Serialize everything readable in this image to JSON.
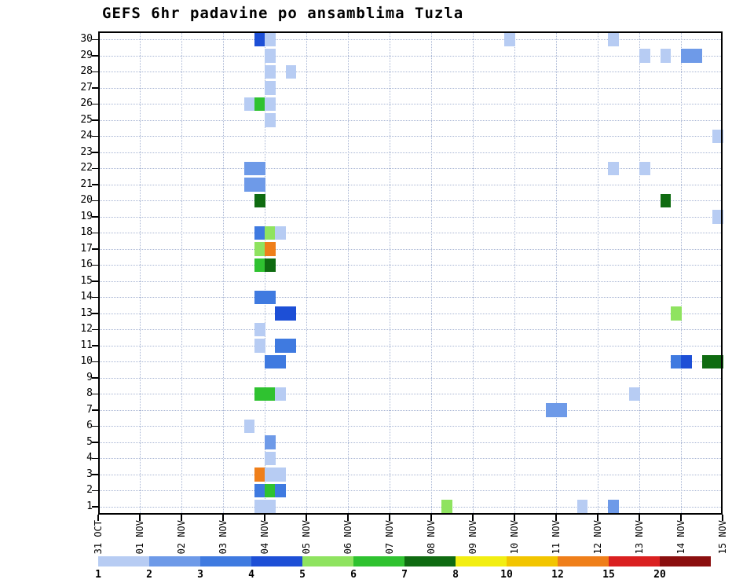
{
  "title": "GEFS 6hr padavine po ansamblima Tuzla",
  "chart_data": {
    "type": "heatmap",
    "title": "GEFS 6hr padavine po ansamblima Tuzla",
    "xlabel": "",
    "ylabel": "",
    "grid": true,
    "legend_position": "bottom",
    "members": [
      1,
      2,
      3,
      4,
      5,
      6,
      7,
      8,
      9,
      10,
      11,
      12,
      13,
      14,
      15,
      16,
      17,
      18,
      19,
      20,
      21,
      22,
      23,
      24,
      25,
      26,
      27,
      28,
      29,
      30
    ],
    "x_ticks": [
      "31 OCT",
      "01 NOV",
      "02 NOV",
      "03 NOV",
      "04 NOV",
      "05 NOV",
      "06 NOV",
      "07 NOV",
      "08 NOV",
      "09 NOV",
      "10 NOV",
      "11 NOV",
      "12 NOV",
      "13 NOV",
      "14 NOV",
      "15 NOV"
    ],
    "steps_per_day": 4,
    "cell_format": "m = ensemble member (y), s = 6-hour step index counted from 31 OCT 00h (x), v = precipitation amount (mm) mapped to legend color",
    "legend": {
      "values": [
        1,
        2,
        3,
        4,
        5,
        6,
        7,
        8,
        10,
        12,
        15,
        20
      ],
      "colors": [
        "#b7ccf3",
        "#6e9ae8",
        "#3f7ae0",
        "#1d4fd6",
        "#8fe360",
        "#2fc230",
        "#0f6b11",
        "#f2ee12",
        "#f2c500",
        "#ef7f1a",
        "#da2020",
        "#8b0f0f"
      ]
    },
    "cells": [
      {
        "m": 30,
        "s": 15,
        "v": 4
      },
      {
        "m": 30,
        "s": 16,
        "v": 1
      },
      {
        "m": 30,
        "s": 39,
        "v": 1
      },
      {
        "m": 30,
        "s": 49,
        "v": 1
      },
      {
        "m": 29,
        "s": 16,
        "v": 1
      },
      {
        "m": 29,
        "s": 52,
        "v": 1
      },
      {
        "m": 29,
        "s": 54,
        "v": 1
      },
      {
        "m": 29,
        "s": 56,
        "v": 2
      },
      {
        "m": 29,
        "s": 57,
        "v": 2
      },
      {
        "m": 28,
        "s": 16,
        "v": 1
      },
      {
        "m": 28,
        "s": 18,
        "v": 1
      },
      {
        "m": 27,
        "s": 16,
        "v": 1
      },
      {
        "m": 26,
        "s": 14,
        "v": 1
      },
      {
        "m": 26,
        "s": 15,
        "v": 6
      },
      {
        "m": 26,
        "s": 16,
        "v": 1
      },
      {
        "m": 25,
        "s": 16,
        "v": 1
      },
      {
        "m": 24,
        "s": 59,
        "v": 1
      },
      {
        "m": 22,
        "s": 14,
        "v": 2
      },
      {
        "m": 22,
        "s": 15,
        "v": 2
      },
      {
        "m": 22,
        "s": 49,
        "v": 1
      },
      {
        "m": 22,
        "s": 52,
        "v": 1
      },
      {
        "m": 21,
        "s": 14,
        "v": 2
      },
      {
        "m": 21,
        "s": 15,
        "v": 2
      },
      {
        "m": 20,
        "s": 15,
        "v": 7
      },
      {
        "m": 20,
        "s": 54,
        "v": 7
      },
      {
        "m": 19,
        "s": 59,
        "v": 1
      },
      {
        "m": 18,
        "s": 15,
        "v": 3
      },
      {
        "m": 18,
        "s": 16,
        "v": 5
      },
      {
        "m": 18,
        "s": 17,
        "v": 1
      },
      {
        "m": 17,
        "s": 15,
        "v": 5
      },
      {
        "m": 17,
        "s": 16,
        "v": 12
      },
      {
        "m": 16,
        "s": 15,
        "v": 6
      },
      {
        "m": 16,
        "s": 16,
        "v": 7
      },
      {
        "m": 14,
        "s": 15,
        "v": 3
      },
      {
        "m": 14,
        "s": 16,
        "v": 3
      },
      {
        "m": 13,
        "s": 17,
        "v": 4
      },
      {
        "m": 13,
        "s": 18,
        "v": 4
      },
      {
        "m": 13,
        "s": 55,
        "v": 5
      },
      {
        "m": 12,
        "s": 15,
        "v": 1
      },
      {
        "m": 11,
        "s": 15,
        "v": 1
      },
      {
        "m": 11,
        "s": 17,
        "v": 3
      },
      {
        "m": 11,
        "s": 18,
        "v": 3
      },
      {
        "m": 10,
        "s": 16,
        "v": 3
      },
      {
        "m": 10,
        "s": 17,
        "v": 3
      },
      {
        "m": 10,
        "s": 55,
        "v": 3
      },
      {
        "m": 10,
        "s": 56,
        "v": 4
      },
      {
        "m": 10,
        "s": 58,
        "v": 7
      },
      {
        "m": 10,
        "s": 59,
        "v": 7
      },
      {
        "m": 8,
        "s": 15,
        "v": 6
      },
      {
        "m": 8,
        "s": 16,
        "v": 6
      },
      {
        "m": 8,
        "s": 17,
        "v": 1
      },
      {
        "m": 8,
        "s": 51,
        "v": 1
      },
      {
        "m": 7,
        "s": 43,
        "v": 2
      },
      {
        "m": 7,
        "s": 44,
        "v": 2
      },
      {
        "m": 6,
        "s": 14,
        "v": 1
      },
      {
        "m": 5,
        "s": 16,
        "v": 2
      },
      {
        "m": 4,
        "s": 16,
        "v": 1
      },
      {
        "m": 3,
        "s": 15,
        "v": 12
      },
      {
        "m": 3,
        "s": 16,
        "v": 1
      },
      {
        "m": 3,
        "s": 17,
        "v": 1
      },
      {
        "m": 2,
        "s": 15,
        "v": 3
      },
      {
        "m": 2,
        "s": 16,
        "v": 6
      },
      {
        "m": 2,
        "s": 17,
        "v": 3
      },
      {
        "m": 1,
        "s": 15,
        "v": 1
      },
      {
        "m": 1,
        "s": 16,
        "v": 1
      },
      {
        "m": 1,
        "s": 33,
        "v": 5
      },
      {
        "m": 1,
        "s": 46,
        "v": 1
      },
      {
        "m": 1,
        "s": 49,
        "v": 2
      }
    ]
  }
}
